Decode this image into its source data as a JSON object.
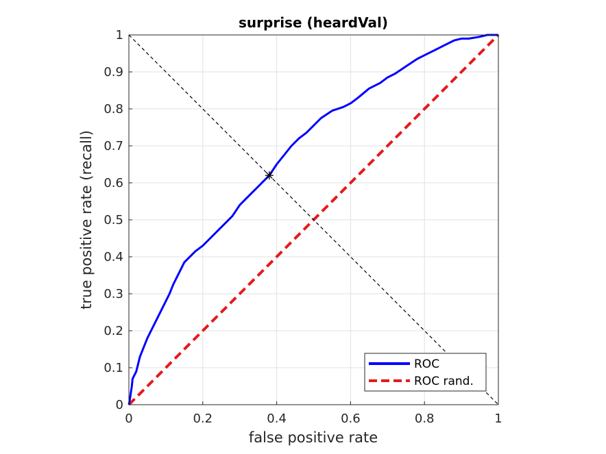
{
  "chart_data": {
    "type": "line",
    "title": "surprise (heardVal)",
    "xlabel": "false positive rate",
    "ylabel": "true positive rate (recall)",
    "xlim": [
      0,
      1
    ],
    "ylim": [
      0,
      1
    ],
    "grid": true,
    "x_ticks": [
      0,
      0.2,
      0.4,
      0.6,
      0.8,
      1
    ],
    "x_tick_labels": [
      "0",
      "0.2",
      "0.4",
      "0.6",
      "0.8",
      "1"
    ],
    "y_ticks": [
      0,
      0.1,
      0.2,
      0.3,
      0.4,
      0.5,
      0.6,
      0.7,
      0.8,
      0.9,
      1
    ],
    "y_tick_labels": [
      "0",
      "0.1",
      "0.2",
      "0.3",
      "0.4",
      "0.5",
      "0.6",
      "0.7",
      "0.8",
      "0.9",
      "1"
    ],
    "legend_position": "bottom-right",
    "series": [
      {
        "name": "ROC",
        "color": "#0000ff",
        "style": "solid",
        "x": [
          0,
          0.002,
          0.005,
          0.008,
          0.01,
          0.015,
          0.02,
          0.025,
          0.03,
          0.04,
          0.05,
          0.06,
          0.07,
          0.08,
          0.09,
          0.1,
          0.11,
          0.12,
          0.13,
          0.14,
          0.15,
          0.16,
          0.17,
          0.18,
          0.2,
          0.22,
          0.24,
          0.26,
          0.28,
          0.3,
          0.32,
          0.34,
          0.36,
          0.38,
          0.4,
          0.42,
          0.44,
          0.46,
          0.48,
          0.5,
          0.52,
          0.55,
          0.58,
          0.6,
          0.62,
          0.65,
          0.68,
          0.7,
          0.72,
          0.75,
          0.78,
          0.8,
          0.82,
          0.85,
          0.88,
          0.9,
          0.92,
          0.95,
          0.97,
          0.98,
          0.99,
          1.0
        ],
        "y": [
          0,
          0.01,
          0.03,
          0.05,
          0.07,
          0.08,
          0.09,
          0.11,
          0.13,
          0.155,
          0.18,
          0.2,
          0.22,
          0.24,
          0.26,
          0.28,
          0.3,
          0.325,
          0.345,
          0.365,
          0.385,
          0.395,
          0.405,
          0.415,
          0.43,
          0.45,
          0.47,
          0.49,
          0.51,
          0.54,
          0.56,
          0.58,
          0.6,
          0.62,
          0.65,
          0.675,
          0.7,
          0.72,
          0.735,
          0.755,
          0.775,
          0.795,
          0.805,
          0.815,
          0.83,
          0.855,
          0.87,
          0.885,
          0.895,
          0.915,
          0.935,
          0.945,
          0.955,
          0.97,
          0.985,
          0.99,
          0.99,
          0.995,
          1.0,
          1.0,
          1.0,
          1.0
        ]
      },
      {
        "name": "ROC rand.",
        "color": "#e41a1c",
        "style": "dashed",
        "x": [
          0,
          1
        ],
        "y": [
          0,
          1
        ]
      }
    ],
    "annotations": [
      {
        "kind": "reference-line",
        "color": "#000000",
        "style": "dashed",
        "x": [
          0,
          1
        ],
        "y": [
          1,
          0
        ]
      },
      {
        "kind": "marker",
        "symbol": "asterisk",
        "color": "#000000",
        "x": 0.38,
        "y": 0.62
      }
    ]
  }
}
